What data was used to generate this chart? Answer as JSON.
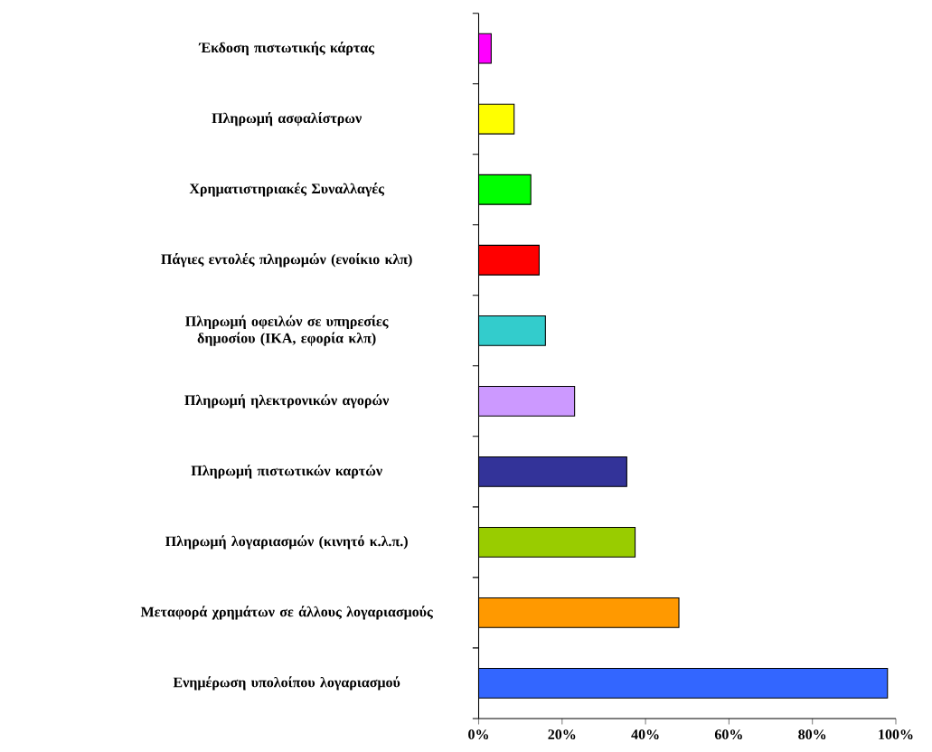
{
  "chart_data": {
    "type": "bar",
    "orientation": "horizontal",
    "categories": [
      "Έκδοση πιστωτικής κάρτας",
      "Πληρωμή ασφαλίστρων",
      "Χρηματιστηριακές Συναλλαγές",
      "Πάγιες εντολές πληρωμών (ενοίκιο κλπ)",
      "Πληρωμή οφειλών σε υπηρεσίες δημοσίου (ΙΚΑ, εφορία κλπ)",
      "Πληρωμή ηλεκτρονικών αγορών",
      "Πληρωμή πιστωτικών καρτών",
      "Πληρωμή λογαριασμών (κινητό κ.λ.π.)",
      "Μεταφορά χρημάτων σε άλλους λογαριασμούς",
      "Ενημέρωση υπολοίπου λογαριασμού"
    ],
    "values": [
      3,
      8.5,
      12.5,
      14.5,
      16,
      23,
      35.5,
      37.5,
      48,
      98
    ],
    "colors": [
      "#ff00ff",
      "#ffff00",
      "#00ff00",
      "#ff0000",
      "#33cccc",
      "#cc99ff",
      "#333399",
      "#99cc00",
      "#ff9900",
      "#3366ff"
    ],
    "xlim": [
      0,
      100
    ],
    "xticks": [
      {
        "value": 0,
        "label": "0%"
      },
      {
        "value": 20,
        "label": "20%"
      },
      {
        "value": 40,
        "label": "40%"
      },
      {
        "value": 60,
        "label": "60%"
      },
      {
        "value": 80,
        "label": "80%"
      },
      {
        "value": 100,
        "label": "100%"
      }
    ]
  }
}
